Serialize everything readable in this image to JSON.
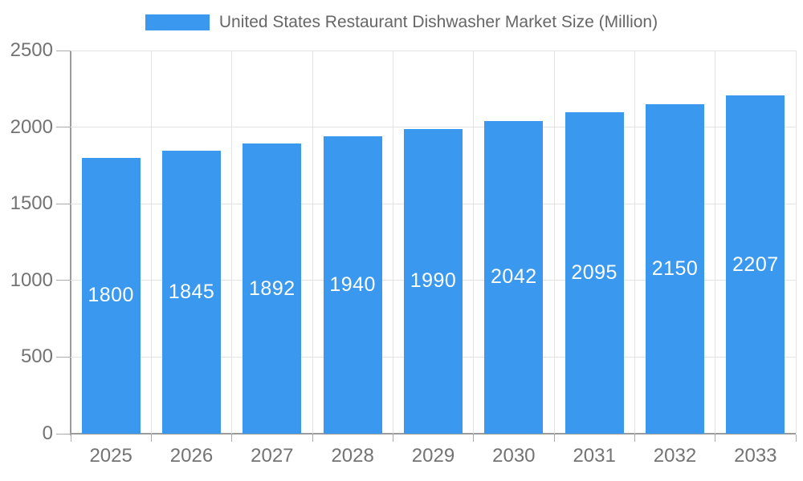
{
  "legend": {
    "label": "United States Restaurant Dishwasher Market Size (Million)"
  },
  "chart_data": {
    "type": "bar",
    "title": "United States Restaurant Dishwasher Market Size (Million)",
    "series_name": "United States Restaurant Dishwasher Market Size (Million)",
    "categories": [
      "2025",
      "2026",
      "2027",
      "2028",
      "2029",
      "2030",
      "2031",
      "2032",
      "2033"
    ],
    "values": [
      1800,
      1845,
      1892,
      1940,
      1990,
      2042,
      2095,
      2150,
      2207
    ],
    "xlabel": "",
    "ylabel": "",
    "ylim": [
      0,
      2500
    ],
    "y_ticks": [
      0,
      500,
      1000,
      1500,
      2000,
      2500
    ],
    "grid": true,
    "legend_position": "top",
    "value_labels": "inside-center"
  },
  "colors": {
    "bar": "#3A99EE",
    "grid": "#e3e3e3",
    "axis": "#9b9b9b",
    "tick_mark": "#aaaaaa",
    "tick_text": "#737373",
    "legend_text": "#666666",
    "value_text": "#ffffff",
    "background": "#ffffff"
  }
}
